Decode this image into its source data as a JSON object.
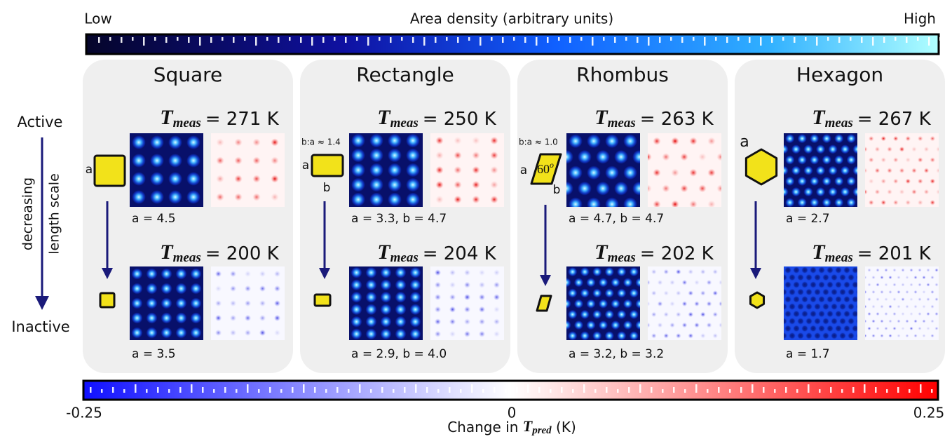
{
  "colorbar_top": {
    "low": "Low",
    "title": "Area density (arbitrary units)",
    "high": "High"
  },
  "side": {
    "top": "Active",
    "arrow_1": "decreasing",
    "arrow_2": "length scale",
    "bottom": "Inactive"
  },
  "symbol": {
    "T": "T",
    "meas": "meas"
  },
  "panels": [
    {
      "title": "Square",
      "shape_labels": [
        "a"
      ],
      "top": {
        "temperature": "= 271 K",
        "lattice": "a = 4.5"
      },
      "bottom": {
        "temperature": "= 200 K",
        "lattice": "a = 3.5"
      }
    },
    {
      "title": "Rectangle",
      "ratio": "b:a ≈ 1.4",
      "shape_labels": [
        "a",
        "b"
      ],
      "top": {
        "temperature": "= 250 K",
        "lattice": "a = 3.3, b = 4.7"
      },
      "bottom": {
        "temperature": "= 204 K",
        "lattice": "a = 2.9, b = 4.0"
      }
    },
    {
      "title": "Rhombus",
      "ratio": "b:a ≈ 1.0",
      "shape_labels": [
        "a",
        "b"
      ],
      "angle": "60",
      "angle_sup": "o",
      "top": {
        "temperature": "= 263 K",
        "lattice": "a = 4.7, b = 4.7"
      },
      "bottom": {
        "temperature": "= 202 K",
        "lattice": "a = 3.2, b = 3.2"
      }
    },
    {
      "title": "Hexagon",
      "shape_labels": [
        "a"
      ],
      "top": {
        "temperature": "= 267 K",
        "lattice": "a = 2.7"
      },
      "bottom": {
        "temperature": "= 201 K",
        "lattice": "a = 1.7"
      }
    }
  ],
  "colorbar_bottom": {
    "ticks": [
      "-0.25",
      "0",
      "0.25"
    ],
    "label": "Change in",
    "symbol": "T",
    "subscript": "pred",
    "unit": "(K)"
  }
}
